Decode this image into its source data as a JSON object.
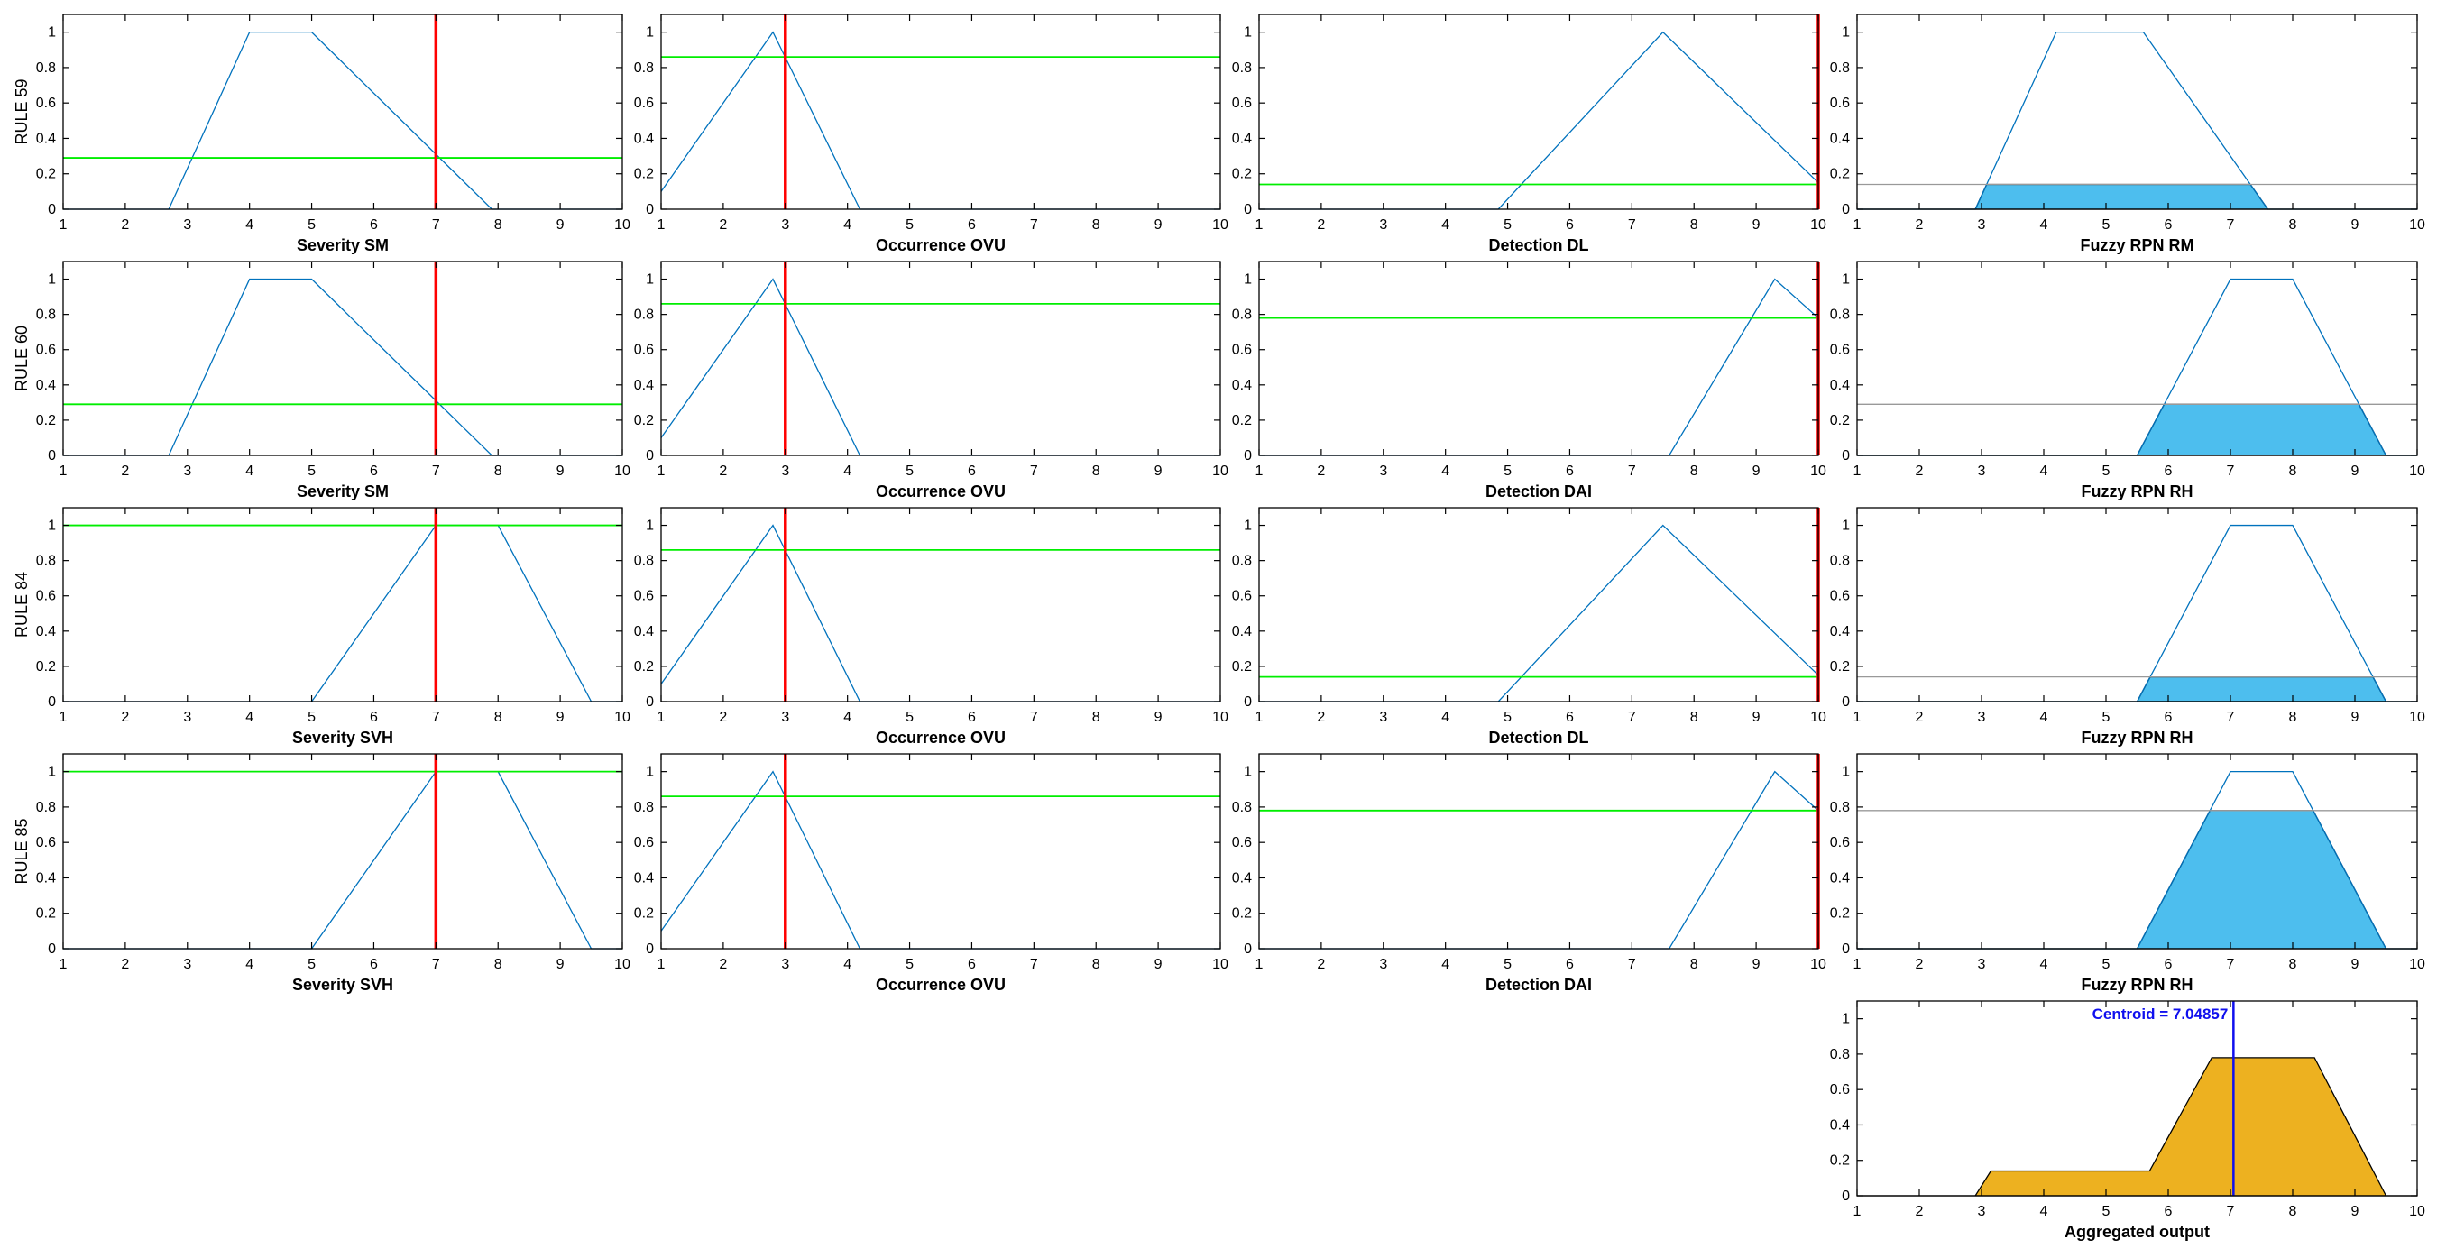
{
  "colors": {
    "mf_line": "#0072bd",
    "input_marker": "#ff0000",
    "firing_level": "#00ee00",
    "consequent_fill": "#4dbeee",
    "aggregate_fill": "#edb120",
    "centroid": "#1010ee",
    "cut_line": "#999999"
  },
  "chart_data": {
    "type": "fuzzy-inference-rule-viewer",
    "x_ticks": [
      1,
      2,
      3,
      4,
      5,
      6,
      7,
      8,
      9,
      10
    ],
    "y_ticks": [
      0,
      0.2,
      0.4,
      0.6,
      0.8,
      1
    ],
    "y_tick_labels": [
      "0",
      "0.2",
      "0.4",
      "0.6",
      "0.8",
      "1"
    ],
    "xlim": [
      1,
      10
    ],
    "ylim": [
      0,
      1.1
    ],
    "inputs": {
      "severity": 7,
      "occurrence": 3,
      "detection": 10
    },
    "rules": [
      {
        "label": "RULE 59",
        "severity": {
          "label": "Severity SM",
          "mf": [
            [
              1,
              0
            ],
            [
              2.7,
              0
            ],
            [
              4,
              1
            ],
            [
              5,
              1
            ],
            [
              7.9,
              0
            ],
            [
              10,
              0
            ]
          ],
          "input": 7,
          "degree": 0.29
        },
        "occurrence": {
          "label": "Occurrence OVU",
          "mf": [
            [
              1,
              0.1
            ],
            [
              2.8,
              1
            ],
            [
              4.2,
              0
            ],
            [
              10,
              0
            ]
          ],
          "input": 3,
          "degree": 0.86
        },
        "detection": {
          "label": "Detection DL",
          "mf": [
            [
              1,
              0
            ],
            [
              4.85,
              0
            ],
            [
              7.5,
              1
            ],
            [
              10,
              0.15
            ]
          ],
          "input": 10,
          "degree": 0.14
        },
        "output": {
          "label": "Fuzzy RPN RM",
          "mf": [
            [
              1,
              0
            ],
            [
              2.9,
              0
            ],
            [
              4.2,
              1
            ],
            [
              5.6,
              1
            ],
            [
              7.6,
              0
            ],
            [
              10,
              0
            ]
          ],
          "level": 0.14
        }
      },
      {
        "label": "RULE 60",
        "severity": {
          "label": "Severity SM",
          "mf": [
            [
              1,
              0
            ],
            [
              2.7,
              0
            ],
            [
              4,
              1
            ],
            [
              5,
              1
            ],
            [
              7.9,
              0
            ],
            [
              10,
              0
            ]
          ],
          "input": 7,
          "degree": 0.29
        },
        "occurrence": {
          "label": "Occurrence OVU",
          "mf": [
            [
              1,
              0.1
            ],
            [
              2.8,
              1
            ],
            [
              4.2,
              0
            ],
            [
              10,
              0
            ]
          ],
          "input": 3,
          "degree": 0.86
        },
        "detection": {
          "label": "Detection DAI",
          "mf": [
            [
              1,
              0
            ],
            [
              7.6,
              0
            ],
            [
              9.3,
              1
            ],
            [
              10,
              0.78
            ]
          ],
          "input": 10,
          "degree": 0.78
        },
        "output": {
          "label": "Fuzzy RPN RH",
          "mf": [
            [
              1,
              0
            ],
            [
              5.5,
              0
            ],
            [
              7,
              1
            ],
            [
              8,
              1
            ],
            [
              9.5,
              0
            ],
            [
              10,
              0
            ]
          ],
          "level": 0.29
        }
      },
      {
        "label": "RULE 84",
        "severity": {
          "label": "Severity SVH",
          "mf": [
            [
              1,
              0
            ],
            [
              5,
              0
            ],
            [
              7,
              1
            ],
            [
              8,
              1
            ],
            [
              9.5,
              0
            ],
            [
              10,
              0
            ]
          ],
          "input": 7,
          "degree": 1.0
        },
        "occurrence": {
          "label": "Occurrence OVU",
          "mf": [
            [
              1,
              0.1
            ],
            [
              2.8,
              1
            ],
            [
              4.2,
              0
            ],
            [
              10,
              0
            ]
          ],
          "input": 3,
          "degree": 0.86
        },
        "detection": {
          "label": "Detection DL",
          "mf": [
            [
              1,
              0
            ],
            [
              4.85,
              0
            ],
            [
              7.5,
              1
            ],
            [
              10,
              0.15
            ]
          ],
          "input": 10,
          "degree": 0.14
        },
        "output": {
          "label": "Fuzzy RPN RH",
          "mf": [
            [
              1,
              0
            ],
            [
              5.5,
              0
            ],
            [
              7,
              1
            ],
            [
              8,
              1
            ],
            [
              9.5,
              0
            ],
            [
              10,
              0
            ]
          ],
          "level": 0.14
        }
      },
      {
        "label": "RULE 85",
        "severity": {
          "label": "Severity SVH",
          "mf": [
            [
              1,
              0
            ],
            [
              5,
              0
            ],
            [
              7,
              1
            ],
            [
              8,
              1
            ],
            [
              9.5,
              0
            ],
            [
              10,
              0
            ]
          ],
          "input": 7,
          "degree": 1.0
        },
        "occurrence": {
          "label": "Occurrence OVU",
          "mf": [
            [
              1,
              0.1
            ],
            [
              2.8,
              1
            ],
            [
              4.2,
              0
            ],
            [
              10,
              0
            ]
          ],
          "input": 3,
          "degree": 0.86
        },
        "detection": {
          "label": "Detection DAI",
          "mf": [
            [
              1,
              0
            ],
            [
              7.6,
              0
            ],
            [
              9.3,
              1
            ],
            [
              10,
              0.78
            ]
          ],
          "input": 10,
          "degree": 0.78
        },
        "output": {
          "label": "Fuzzy RPN RH",
          "mf": [
            [
              1,
              0
            ],
            [
              5.5,
              0
            ],
            [
              7,
              1
            ],
            [
              8,
              1
            ],
            [
              9.5,
              0
            ],
            [
              10,
              0
            ]
          ],
          "level": 0.78
        }
      }
    ],
    "aggregate": {
      "xlabel": "Aggregated output",
      "curve": [
        [
          1,
          0
        ],
        [
          2.9,
          0
        ],
        [
          3.15,
          0.14
        ],
        [
          5.7,
          0.14
        ],
        [
          6.7,
          0.78
        ],
        [
          8.35,
          0.78
        ],
        [
          9.5,
          0
        ],
        [
          10,
          0
        ]
      ],
      "centroid": 7.04857,
      "centroid_text": "Centroid = 7.04857"
    }
  }
}
